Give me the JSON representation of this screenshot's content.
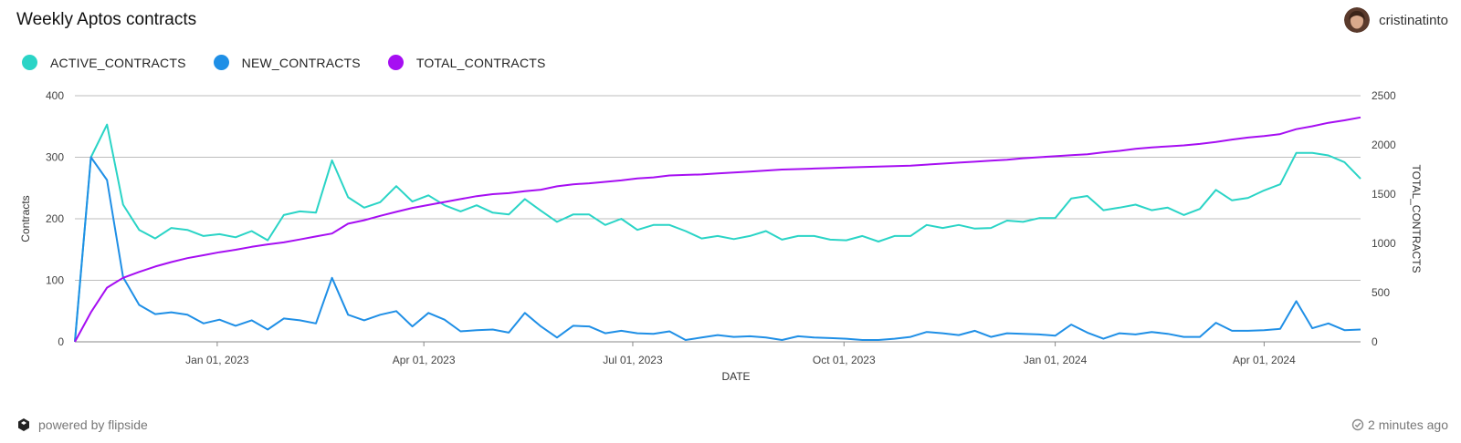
{
  "header": {
    "title": "Weekly Aptos contracts",
    "user_name": "cristinatinto"
  },
  "footer": {
    "powered_by": "powered by flipside",
    "updated": "2 minutes ago"
  },
  "chart_data": {
    "type": "line",
    "title": "Weekly Aptos contracts",
    "xlabel": "DATE",
    "ylabel": "Contracts",
    "y2label": "TOTAL_CONTRACTS",
    "ylim": [
      0,
      400
    ],
    "y2lim": [
      0,
      2500
    ],
    "yticks": [
      0,
      100,
      200,
      300,
      400
    ],
    "y2ticks": [
      0,
      500,
      1000,
      1500,
      2000,
      2500
    ],
    "xticks": [
      "Jan 01, 2023",
      "Apr 01, 2023",
      "Jul 01, 2023",
      "Oct 01, 2023",
      "Jan 01, 2024",
      "Apr 01, 2024"
    ],
    "legend": "top-left",
    "grid": true,
    "colors": {
      "ACTIVE_CONTRACTS": "#2ad4c6",
      "NEW_CONTRACTS": "#1f8fe6",
      "TOTAL_CONTRACTS": "#a60ef2"
    },
    "series": [
      {
        "name": "ACTIVE_CONTRACTS",
        "axis": "left",
        "values": [
          0,
          300,
          353,
          223,
          182,
          168,
          185,
          182,
          172,
          175,
          170,
          180,
          165,
          206,
          212,
          210,
          295,
          235,
          218,
          227,
          253,
          228,
          238,
          222,
          212,
          222,
          210,
          207,
          232,
          213,
          195,
          207,
          207,
          190,
          200,
          182,
          190,
          190,
          180,
          168,
          172,
          167,
          172,
          180,
          166,
          172,
          172,
          166,
          165,
          172,
          163,
          172,
          172,
          190,
          185,
          190,
          184,
          185,
          197,
          195,
          201,
          201,
          233,
          237,
          214,
          218,
          223,
          214,
          218,
          206,
          216,
          247,
          230,
          234,
          246,
          256,
          307,
          307,
          303,
          292,
          265
        ]
      },
      {
        "name": "NEW_CONTRACTS",
        "axis": "left",
        "values": [
          0,
          300,
          263,
          105,
          60,
          45,
          48,
          44,
          30,
          36,
          26,
          35,
          20,
          38,
          35,
          30,
          104,
          44,
          35,
          44,
          50,
          25,
          47,
          36,
          17,
          19,
          20,
          15,
          47,
          25,
          7,
          26,
          25,
          14,
          18,
          14,
          13,
          17,
          3,
          7,
          11,
          8,
          9,
          7,
          3,
          9,
          7,
          6,
          5,
          3,
          3,
          5,
          8,
          16,
          14,
          11,
          18,
          8,
          14,
          13,
          12,
          10,
          28,
          15,
          5,
          14,
          12,
          16,
          13,
          8,
          8,
          31,
          18,
          18,
          19,
          21,
          66,
          22,
          30,
          19,
          20
        ]
      },
      {
        "name": "TOTAL_CONTRACTS",
        "axis": "right",
        "values": [
          0,
          300,
          550,
          650,
          710,
          765,
          810,
          850,
          880,
          910,
          935,
          965,
          990,
          1010,
          1040,
          1070,
          1100,
          1200,
          1235,
          1280,
          1320,
          1360,
          1390,
          1420,
          1450,
          1480,
          1500,
          1510,
          1530,
          1545,
          1580,
          1600,
          1610,
          1625,
          1640,
          1660,
          1670,
          1690,
          1695,
          1700,
          1710,
          1720,
          1730,
          1740,
          1750,
          1755,
          1760,
          1765,
          1770,
          1775,
          1780,
          1785,
          1790,
          1800,
          1810,
          1820,
          1830,
          1840,
          1850,
          1865,
          1875,
          1885,
          1895,
          1905,
          1925,
          1940,
          1960,
          1975,
          1985,
          1995,
          2010,
          2030,
          2055,
          2075,
          2090,
          2110,
          2160,
          2190,
          2225,
          2250,
          2280
        ]
      }
    ]
  }
}
